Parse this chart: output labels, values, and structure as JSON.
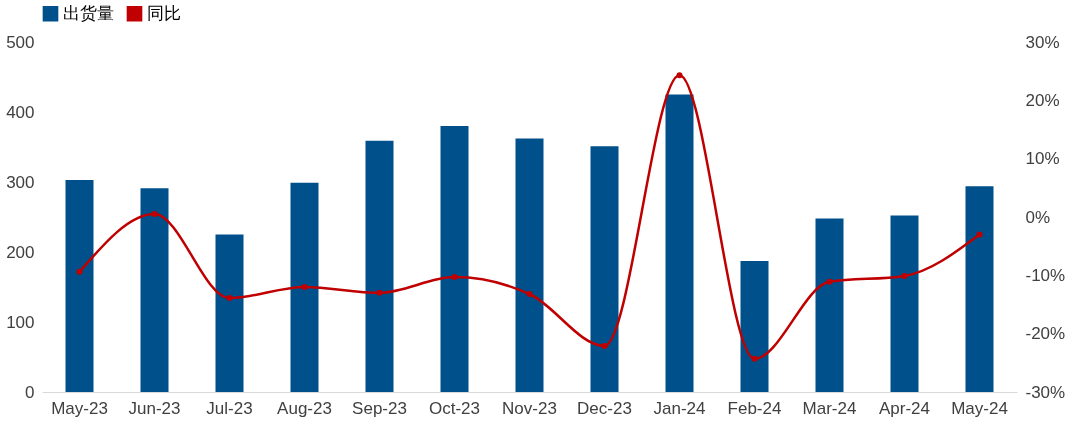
{
  "chart_data": {
    "type": "bar",
    "categories": [
      "May-23",
      "Jun-23",
      "Jul-23",
      "Aug-23",
      "Sep-23",
      "Oct-23",
      "Nov-23",
      "Dec-23",
      "Jan-24",
      "Feb-24",
      "Mar-24",
      "Apr-24",
      "May-24"
    ],
    "series": [
      {
        "name": "出货量",
        "color": "#00508c",
        "values": [
          303,
          291,
          225,
          299,
          359,
          380,
          362,
          351,
          425,
          187,
          248,
          252,
          294
        ]
      },
      {
        "name": "同比",
        "type": "line",
        "axis": "y2",
        "color": "#c00000",
        "values": [
          -9.4,
          0.5,
          -13.9,
          -12.0,
          -13.0,
          -10.3,
          -13.2,
          -22.1,
          24.3,
          -24.3,
          -11.1,
          -10.1,
          -3.0
        ]
      }
    ],
    "ylim": [
      0,
      500
    ],
    "yticks": [
      0,
      100,
      200,
      300,
      400,
      500
    ],
    "y2lim": [
      -30,
      30
    ],
    "y2ticks": [
      {
        "value": -30,
        "label": "-30%"
      },
      {
        "value": -20,
        "label": "-20%"
      },
      {
        "value": -10,
        "label": "-10%"
      },
      {
        "value": 0,
        "label": "0%"
      },
      {
        "value": 10,
        "label": "10%"
      },
      {
        "value": 20,
        "label": "20%"
      },
      {
        "value": 30,
        "label": "30%"
      }
    ],
    "legend": "top",
    "marker": "circle",
    "line_style": "solid",
    "grid": false
  }
}
